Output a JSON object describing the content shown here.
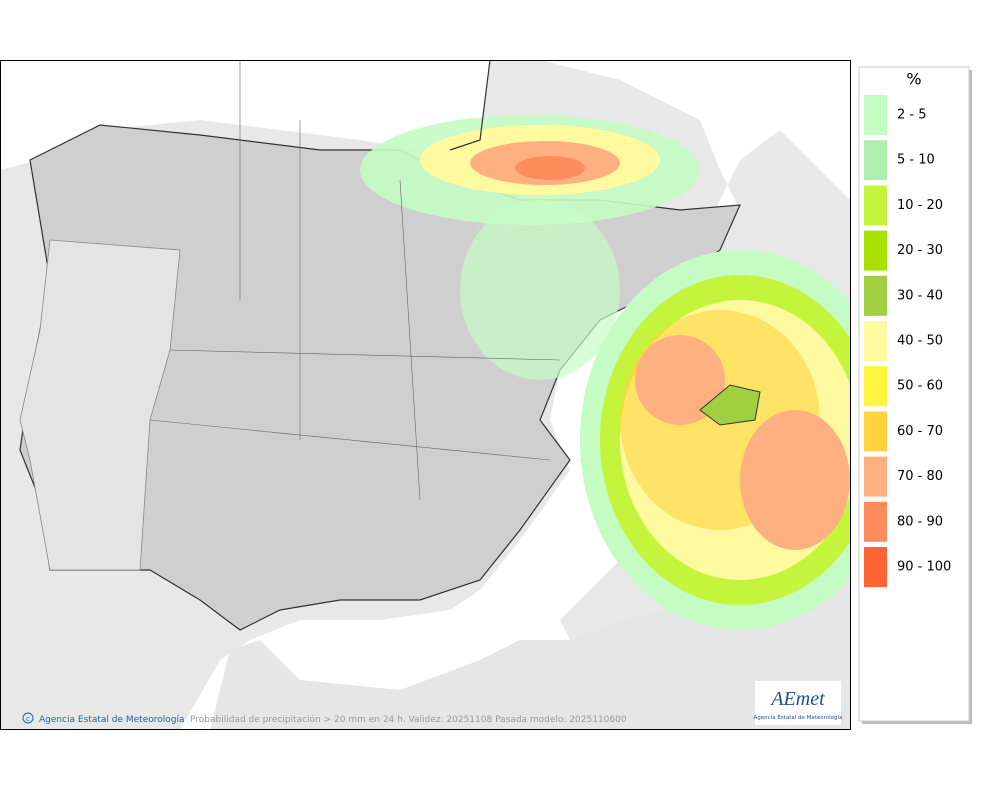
{
  "legend": {
    "title": "%",
    "items": [
      {
        "label": "2 - 5",
        "color": "#c4fcc4"
      },
      {
        "label": "5 - 10",
        "color": "#b0eeb0"
      },
      {
        "label": "10 - 20",
        "color": "#c4f43c"
      },
      {
        "label": "20 - 30",
        "color": "#a8e000"
      },
      {
        "label": "30 - 40",
        "color": "#a0d040"
      },
      {
        "label": "40 - 50",
        "color": "#fffaa0"
      },
      {
        "label": "50 - 60",
        "color": "#fff440"
      },
      {
        "label": "60 - 70",
        "color": "#ffd440"
      },
      {
        "label": "70 - 80",
        "color": "#ffb080"
      },
      {
        "label": "80 - 90",
        "color": "#ff8c5c"
      },
      {
        "label": "90 - 100",
        "color": "#ff6434"
      }
    ]
  },
  "footer": {
    "credit": "Agencia Estatal de Meteorología",
    "caption": "Probabilidad de precipitación > 20 mm en 24 h. Validez: 20251108 Pasada modelo: 2025110600"
  },
  "logo": {
    "name": "AEmet",
    "subtitle": "Agencia Estatal de Meteorología"
  }
}
